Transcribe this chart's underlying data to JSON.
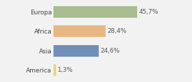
{
  "categories": [
    "Europa",
    "Africa",
    "Asia",
    "America"
  ],
  "values": [
    45.7,
    28.4,
    24.6,
    1.3
  ],
  "labels": [
    "45,7%",
    "28,4%",
    "24,6%",
    "1,3%"
  ],
  "bar_colors": [
    "#a8bc8f",
    "#e8b882",
    "#7090b8",
    "#e8d87a"
  ],
  "background_color": "#f2f2f2",
  "xlim": [
    0,
    60
  ],
  "label_fontsize": 6.5,
  "tick_fontsize": 6.5,
  "bar_height": 0.6
}
